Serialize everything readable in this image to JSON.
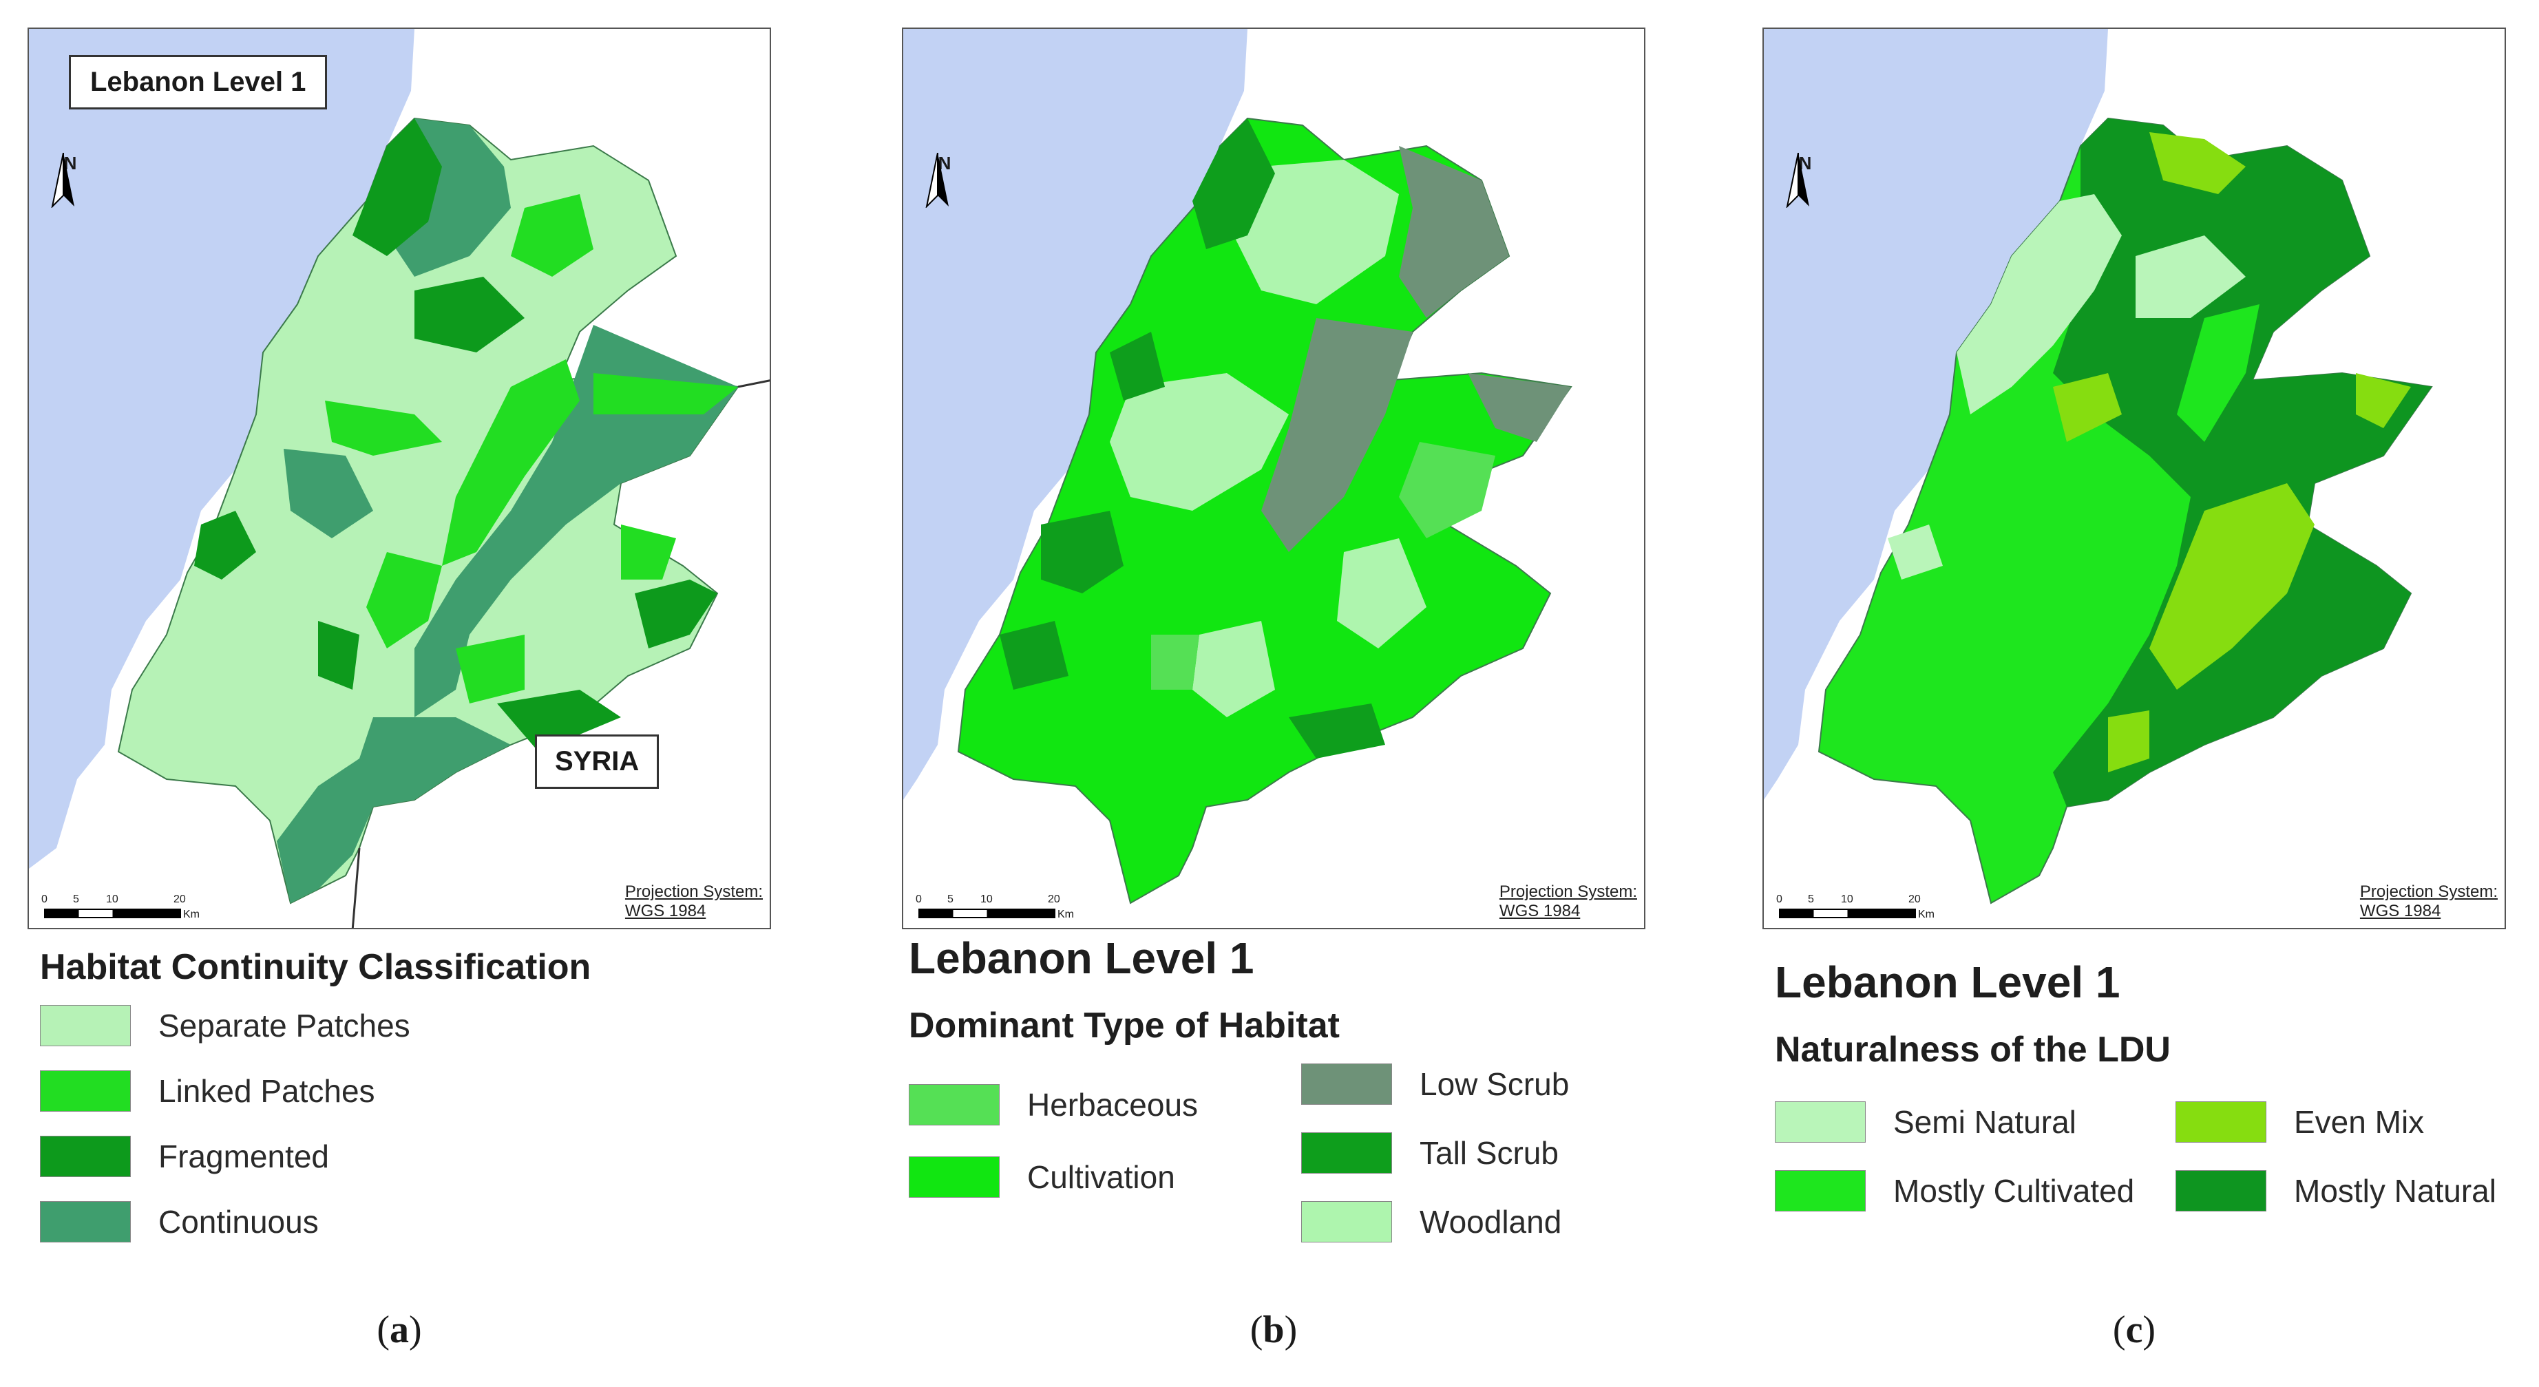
{
  "panels": {
    "a": {
      "map_title": "Lebanon Level 1",
      "country_label": "SYRIA",
      "projection_line1": "Projection System:",
      "projection_line2": "WGS 1984",
      "scale_ticks": [
        "0",
        "5",
        "10",
        "20"
      ],
      "scale_unit": "Km",
      "north": "N",
      "legend_title": "Habitat Continuity Classification",
      "legend": [
        {
          "label": "Separate Patches",
          "color": "#b6f2b6"
        },
        {
          "label": "Linked Patches",
          "color": "#22dd22"
        },
        {
          "label": "Fragmented",
          "color": "#0d9a1c"
        },
        {
          "label": "Continuous",
          "color": "#3f9e6e"
        }
      ],
      "caption": "a"
    },
    "b": {
      "projection_line1": "Projection System:",
      "projection_line2": "WGS 1984",
      "scale_ticks": [
        "0",
        "5",
        "10",
        "20"
      ],
      "scale_unit": "Km",
      "north": "N",
      "legend_heading": "Lebanon Level 1",
      "legend_title": "Dominant Type of Habitat",
      "legend": [
        {
          "label": "Herbaceous",
          "color": "#55e055"
        },
        {
          "label": "Cultivation",
          "color": "#11e611"
        },
        {
          "label": "Low Scrub",
          "color": "#6e9278"
        },
        {
          "label": "Tall Scrub",
          "color": "#0e9e1c"
        },
        {
          "label": "Woodland",
          "color": "#aef5ae"
        }
      ],
      "caption": "b"
    },
    "c": {
      "projection_line1": "Projection System:",
      "projection_line2": "WGS 1984",
      "scale_ticks": [
        "0",
        "5",
        "10",
        "20"
      ],
      "scale_unit": "Km",
      "north": "N",
      "legend_heading": "Lebanon Level 1",
      "legend_title": "Naturalness of the LDU",
      "legend": [
        {
          "label": "Semi Natural",
          "color": "#b9f5b9"
        },
        {
          "label": "Mostly Cultivated",
          "color": "#1ee61e"
        },
        {
          "label": "Even Mix",
          "color": "#86dd10"
        },
        {
          "label": "Mostly Natural",
          "color": "#0e9520"
        }
      ],
      "caption": "c"
    }
  },
  "colors": {
    "sea": "#c2d2f4",
    "border_line": "#333333"
  }
}
